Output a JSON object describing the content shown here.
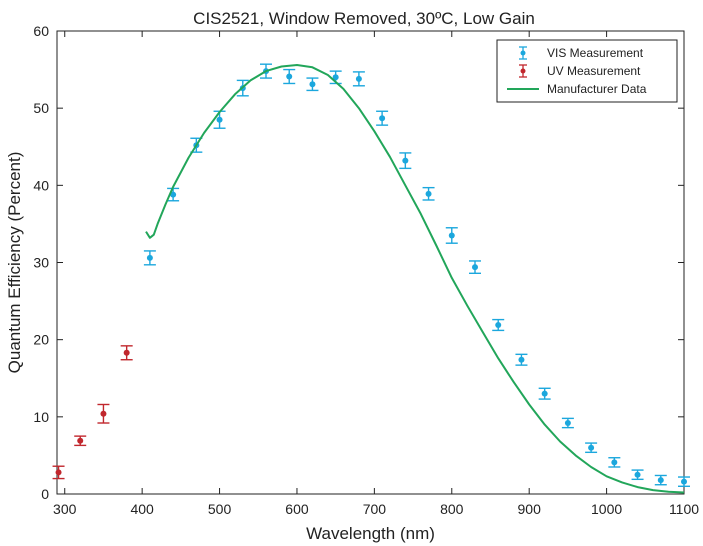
{
  "chart_data": {
    "type": "scatter",
    "title": "CIS2521, Window Removed, 30ºC, Low Gain",
    "xlabel": "Wavelength (nm)",
    "ylabel": "Quantum Efficiency (Percent)",
    "xlim": [
      290,
      1100
    ],
    "ylim": [
      0,
      60
    ],
    "xticks": [
      300,
      400,
      500,
      600,
      700,
      800,
      900,
      1000,
      1100
    ],
    "yticks": [
      0,
      10,
      20,
      30,
      40,
      50,
      60
    ],
    "grid": false,
    "legend": "top-right",
    "colors": {
      "vis": "#1ba7dd",
      "uv": "#c1272d",
      "manufacturer": "#22a65a",
      "axis": "#222222"
    },
    "series": [
      {
        "name": "VIS Measurement",
        "kind": "errorbar",
        "x": [
          410,
          440,
          470,
          500,
          530,
          560,
          590,
          620,
          650,
          680,
          710,
          740,
          770,
          800,
          830,
          860,
          890,
          920,
          950,
          980,
          1010,
          1040,
          1070,
          1100
        ],
        "y": [
          30.6,
          38.8,
          45.2,
          48.5,
          52.6,
          54.8,
          54.1,
          53.1,
          54.0,
          53.8,
          48.7,
          43.2,
          38.9,
          33.5,
          29.4,
          21.9,
          17.4,
          13.0,
          9.2,
          6.0,
          4.1,
          2.5,
          1.8,
          1.6
        ],
        "err": [
          0.9,
          0.8,
          0.9,
          1.1,
          1.0,
          0.9,
          0.9,
          0.8,
          0.8,
          0.9,
          0.9,
          1.0,
          0.8,
          1.0,
          0.8,
          0.7,
          0.7,
          0.7,
          0.6,
          0.6,
          0.6,
          0.6,
          0.6,
          0.6
        ]
      },
      {
        "name": "UV Measurement",
        "kind": "errorbar",
        "x": [
          292,
          320,
          350,
          380
        ],
        "y": [
          2.8,
          6.9,
          10.4,
          18.3
        ],
        "err": [
          0.8,
          0.6,
          1.2,
          0.9
        ]
      },
      {
        "name": "Manufacturer Data",
        "kind": "line",
        "x": [
          405,
          410,
          415,
          420,
          430,
          440,
          460,
          480,
          500,
          520,
          540,
          560,
          580,
          600,
          620,
          640,
          660,
          680,
          700,
          720,
          740,
          760,
          780,
          800,
          820,
          840,
          860,
          880,
          900,
          920,
          940,
          960,
          980,
          1000,
          1020,
          1040,
          1060,
          1080,
          1100
        ],
        "y": [
          34.0,
          33.2,
          33.6,
          35.0,
          37.5,
          39.8,
          43.6,
          46.8,
          49.5,
          51.8,
          53.6,
          54.8,
          55.4,
          55.6,
          55.3,
          54.3,
          52.5,
          50.0,
          47.0,
          43.7,
          40.0,
          36.3,
          32.2,
          28.0,
          24.4,
          21.0,
          17.6,
          14.5,
          11.6,
          9.0,
          6.8,
          5.0,
          3.5,
          2.3,
          1.5,
          0.9,
          0.5,
          0.3,
          0.2
        ]
      }
    ]
  }
}
